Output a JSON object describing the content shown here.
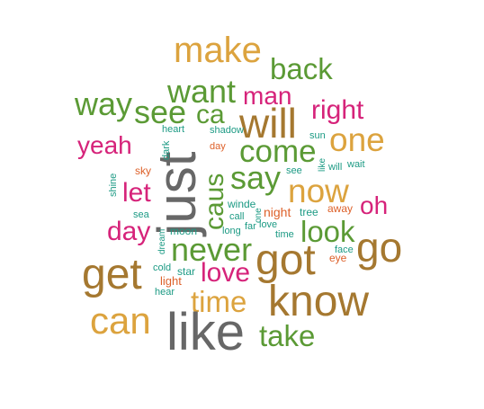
{
  "colors": {
    "gray": "#676767",
    "green": "#5b9a35",
    "pink": "#d6237a",
    "gold": "#dca33e",
    "brown": "#a57830",
    "teal": "#1c9a84",
    "orange": "#dd6029"
  },
  "words": [
    {
      "text": "make",
      "color": "gold"
    },
    {
      "text": "back",
      "color": "green"
    },
    {
      "text": "want",
      "color": "green"
    },
    {
      "text": "man",
      "color": "pink"
    },
    {
      "text": "way",
      "color": "green"
    },
    {
      "text": "see",
      "color": "green"
    },
    {
      "text": "ca",
      "color": "green"
    },
    {
      "text": "will",
      "color": "brown"
    },
    {
      "text": "right",
      "color": "pink"
    },
    {
      "text": "one",
      "color": "gold"
    },
    {
      "text": "yeah",
      "color": "pink"
    },
    {
      "text": "come",
      "color": "green"
    },
    {
      "text": "say",
      "color": "green"
    },
    {
      "text": "now",
      "color": "gold"
    },
    {
      "text": "let",
      "color": "pink"
    },
    {
      "text": "oh",
      "color": "pink"
    },
    {
      "text": "day",
      "color": "pink"
    },
    {
      "text": "look",
      "color": "green"
    },
    {
      "text": "never",
      "color": "green"
    },
    {
      "text": "go",
      "color": "brown"
    },
    {
      "text": "get",
      "color": "brown"
    },
    {
      "text": "got",
      "color": "brown"
    },
    {
      "text": "love",
      "color": "pink"
    },
    {
      "text": "know",
      "color": "brown"
    },
    {
      "text": "time",
      "color": "gold"
    },
    {
      "text": "can",
      "color": "gold"
    },
    {
      "text": "like",
      "color": "gray"
    },
    {
      "text": "take",
      "color": "green"
    },
    {
      "text": "just",
      "color": "gray"
    },
    {
      "text": "caus",
      "color": "green"
    },
    {
      "text": "heart",
      "color": "teal"
    },
    {
      "text": "shadow",
      "color": "teal"
    },
    {
      "text": "sun",
      "color": "teal"
    },
    {
      "text": "dark",
      "color": "teal"
    },
    {
      "text": "day",
      "color": "orange"
    },
    {
      "text": "sky",
      "color": "orange"
    },
    {
      "text": "like",
      "color": "teal"
    },
    {
      "text": "will",
      "color": "teal"
    },
    {
      "text": "wait",
      "color": "teal"
    },
    {
      "text": "see",
      "color": "teal"
    },
    {
      "text": "shine",
      "color": "teal"
    },
    {
      "text": "winde",
      "color": "teal"
    },
    {
      "text": "night",
      "color": "orange"
    },
    {
      "text": "tree",
      "color": "teal"
    },
    {
      "text": "away",
      "color": "orange"
    },
    {
      "text": "sea",
      "color": "teal"
    },
    {
      "text": "call",
      "color": "teal"
    },
    {
      "text": "one",
      "color": "teal"
    },
    {
      "text": "moon",
      "color": "teal"
    },
    {
      "text": "long",
      "color": "teal"
    },
    {
      "text": "far",
      "color": "teal"
    },
    {
      "text": "love",
      "color": "teal"
    },
    {
      "text": "time",
      "color": "teal"
    },
    {
      "text": "dream",
      "color": "teal"
    },
    {
      "text": "face",
      "color": "teal"
    },
    {
      "text": "eye",
      "color": "orange"
    },
    {
      "text": "cold",
      "color": "teal"
    },
    {
      "text": "star",
      "color": "teal"
    },
    {
      "text": "light",
      "color": "orange"
    },
    {
      "text": "hear",
      "color": "teal"
    }
  ]
}
